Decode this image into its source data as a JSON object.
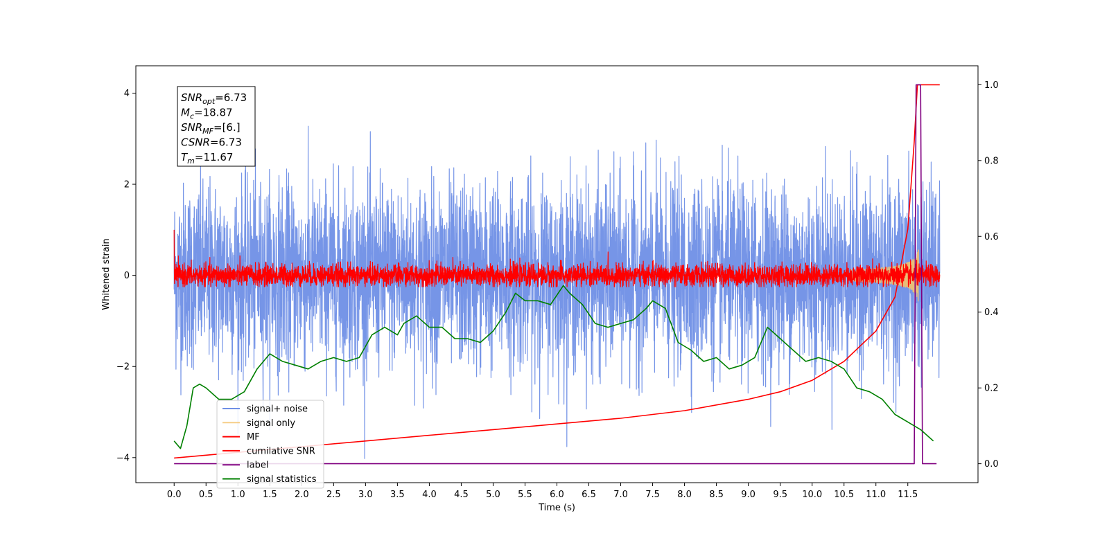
{
  "chart_data": {
    "type": "line",
    "title": "",
    "xlabel": "Time (s)",
    "ylabel": "Whitened strain",
    "xlim": [
      -0.6,
      12.6
    ],
    "ylim": [
      -4.55,
      4.6
    ],
    "y2lim": [
      -0.05,
      1.05
    ],
    "xticks": [
      0.0,
      0.5,
      1.0,
      1.5,
      2.0,
      2.5,
      3.0,
      3.5,
      4.0,
      4.5,
      5.0,
      5.5,
      6.0,
      6.5,
      7.0,
      7.5,
      8.0,
      8.5,
      9.0,
      9.5,
      10.0,
      10.5,
      11.0,
      11.5
    ],
    "xtick_labels": [
      "0.0",
      "0.5",
      "1.0",
      "1.5",
      "2.0",
      "2.5",
      "3.0",
      "3.5",
      "4.0",
      "4.5",
      "5.0",
      "5.5",
      "6.0",
      "6.5",
      "7.0",
      "7.5",
      "8.0",
      "8.5",
      "9.0",
      "9.5",
      "10.0",
      "10.5",
      "11.0",
      "11.5"
    ],
    "yticks": [
      -4,
      -2,
      0,
      2,
      4
    ],
    "ytick_labels": [
      "−4",
      "−2",
      "0",
      "2",
      "4"
    ],
    "y2ticks": [
      0.0,
      0.2,
      0.4,
      0.6,
      0.8,
      1.0
    ],
    "y2tick_labels": [
      "0.0",
      "0.2",
      "0.4",
      "0.6",
      "0.8",
      "1.0"
    ],
    "grid": false,
    "legend_position": "lower-left",
    "annotation": {
      "lines": [
        {
          "sym": "SNR",
          "sub": "opt",
          "val": "=6.73"
        },
        {
          "sym": "M",
          "sub": "c",
          "val": "=18.87"
        },
        {
          "sym": "SNR",
          "sub": "MF",
          "val": "=[6.]"
        },
        {
          "sym": "CSNR",
          "sub": "",
          "val": "=6.73"
        },
        {
          "sym": "T",
          "sub": "m",
          "val": "=11.67"
        }
      ]
    },
    "series": [
      {
        "name": "signal+ noise",
        "color": "#6f8fe6",
        "axis": "left",
        "noise": {
          "t_start": 0.0,
          "t_end": 12.0,
          "std": 1.0,
          "max": 4.15,
          "min": -4.1
        }
      },
      {
        "name": "signal only",
        "color": "#f5c26b",
        "axis": "left",
        "chirp": {
          "t_end": 11.67,
          "peak": 0.6
        }
      },
      {
        "name": "MF",
        "color": "#ff0000",
        "axis": "left",
        "noise": {
          "t_start": 0.0,
          "t_end": 12.0,
          "std": 0.12,
          "max": 1.0,
          "min": -0.25
        }
      },
      {
        "name": "cumilative SNR",
        "color": "#ff0000",
        "axis": "right",
        "x": [
          0.0,
          1.0,
          2.0,
          3.0,
          4.0,
          5.0,
          6.0,
          7.0,
          8.0,
          9.0,
          9.5,
          10.0,
          10.5,
          11.0,
          11.3,
          11.5,
          11.6,
          11.65,
          11.7,
          12.0
        ],
        "y": [
          0.015,
          0.03,
          0.045,
          0.06,
          0.075,
          0.09,
          0.105,
          0.12,
          0.14,
          0.17,
          0.19,
          0.22,
          0.27,
          0.35,
          0.44,
          0.62,
          0.85,
          1.0,
          1.0,
          1.0
        ]
      },
      {
        "name": "label",
        "color": "#800080",
        "axis": "right",
        "x": [
          0.0,
          11.6,
          11.63,
          11.7,
          11.73,
          11.95
        ],
        "y": [
          0.0,
          0.0,
          1.0,
          1.0,
          0.0,
          0.0
        ]
      },
      {
        "name": "signal statistics",
        "color": "#008000",
        "axis": "right",
        "x": [
          0.0,
          0.1,
          0.2,
          0.3,
          0.4,
          0.5,
          0.7,
          0.9,
          1.1,
          1.3,
          1.5,
          1.7,
          1.9,
          2.1,
          2.3,
          2.5,
          2.7,
          2.9,
          3.1,
          3.3,
          3.5,
          3.6,
          3.8,
          4.0,
          4.2,
          4.4,
          4.6,
          4.8,
          5.0,
          5.2,
          5.35,
          5.5,
          5.7,
          5.9,
          6.1,
          6.2,
          6.4,
          6.6,
          6.8,
          7.0,
          7.2,
          7.4,
          7.5,
          7.7,
          7.9,
          8.1,
          8.3,
          8.5,
          8.7,
          8.9,
          9.1,
          9.3,
          9.5,
          9.7,
          9.9,
          10.1,
          10.3,
          10.5,
          10.7,
          10.9,
          11.1,
          11.3,
          11.5,
          11.7,
          11.9
        ],
        "y": [
          0.06,
          0.04,
          0.1,
          0.2,
          0.21,
          0.2,
          0.17,
          0.17,
          0.19,
          0.25,
          0.29,
          0.27,
          0.26,
          0.25,
          0.27,
          0.28,
          0.27,
          0.28,
          0.34,
          0.36,
          0.34,
          0.37,
          0.39,
          0.36,
          0.36,
          0.33,
          0.33,
          0.32,
          0.35,
          0.4,
          0.45,
          0.43,
          0.43,
          0.42,
          0.47,
          0.45,
          0.42,
          0.37,
          0.36,
          0.37,
          0.38,
          0.41,
          0.43,
          0.41,
          0.32,
          0.3,
          0.27,
          0.28,
          0.25,
          0.26,
          0.28,
          0.36,
          0.33,
          0.3,
          0.27,
          0.28,
          0.27,
          0.25,
          0.2,
          0.19,
          0.17,
          0.13,
          0.11,
          0.09,
          0.06
        ]
      }
    ]
  }
}
